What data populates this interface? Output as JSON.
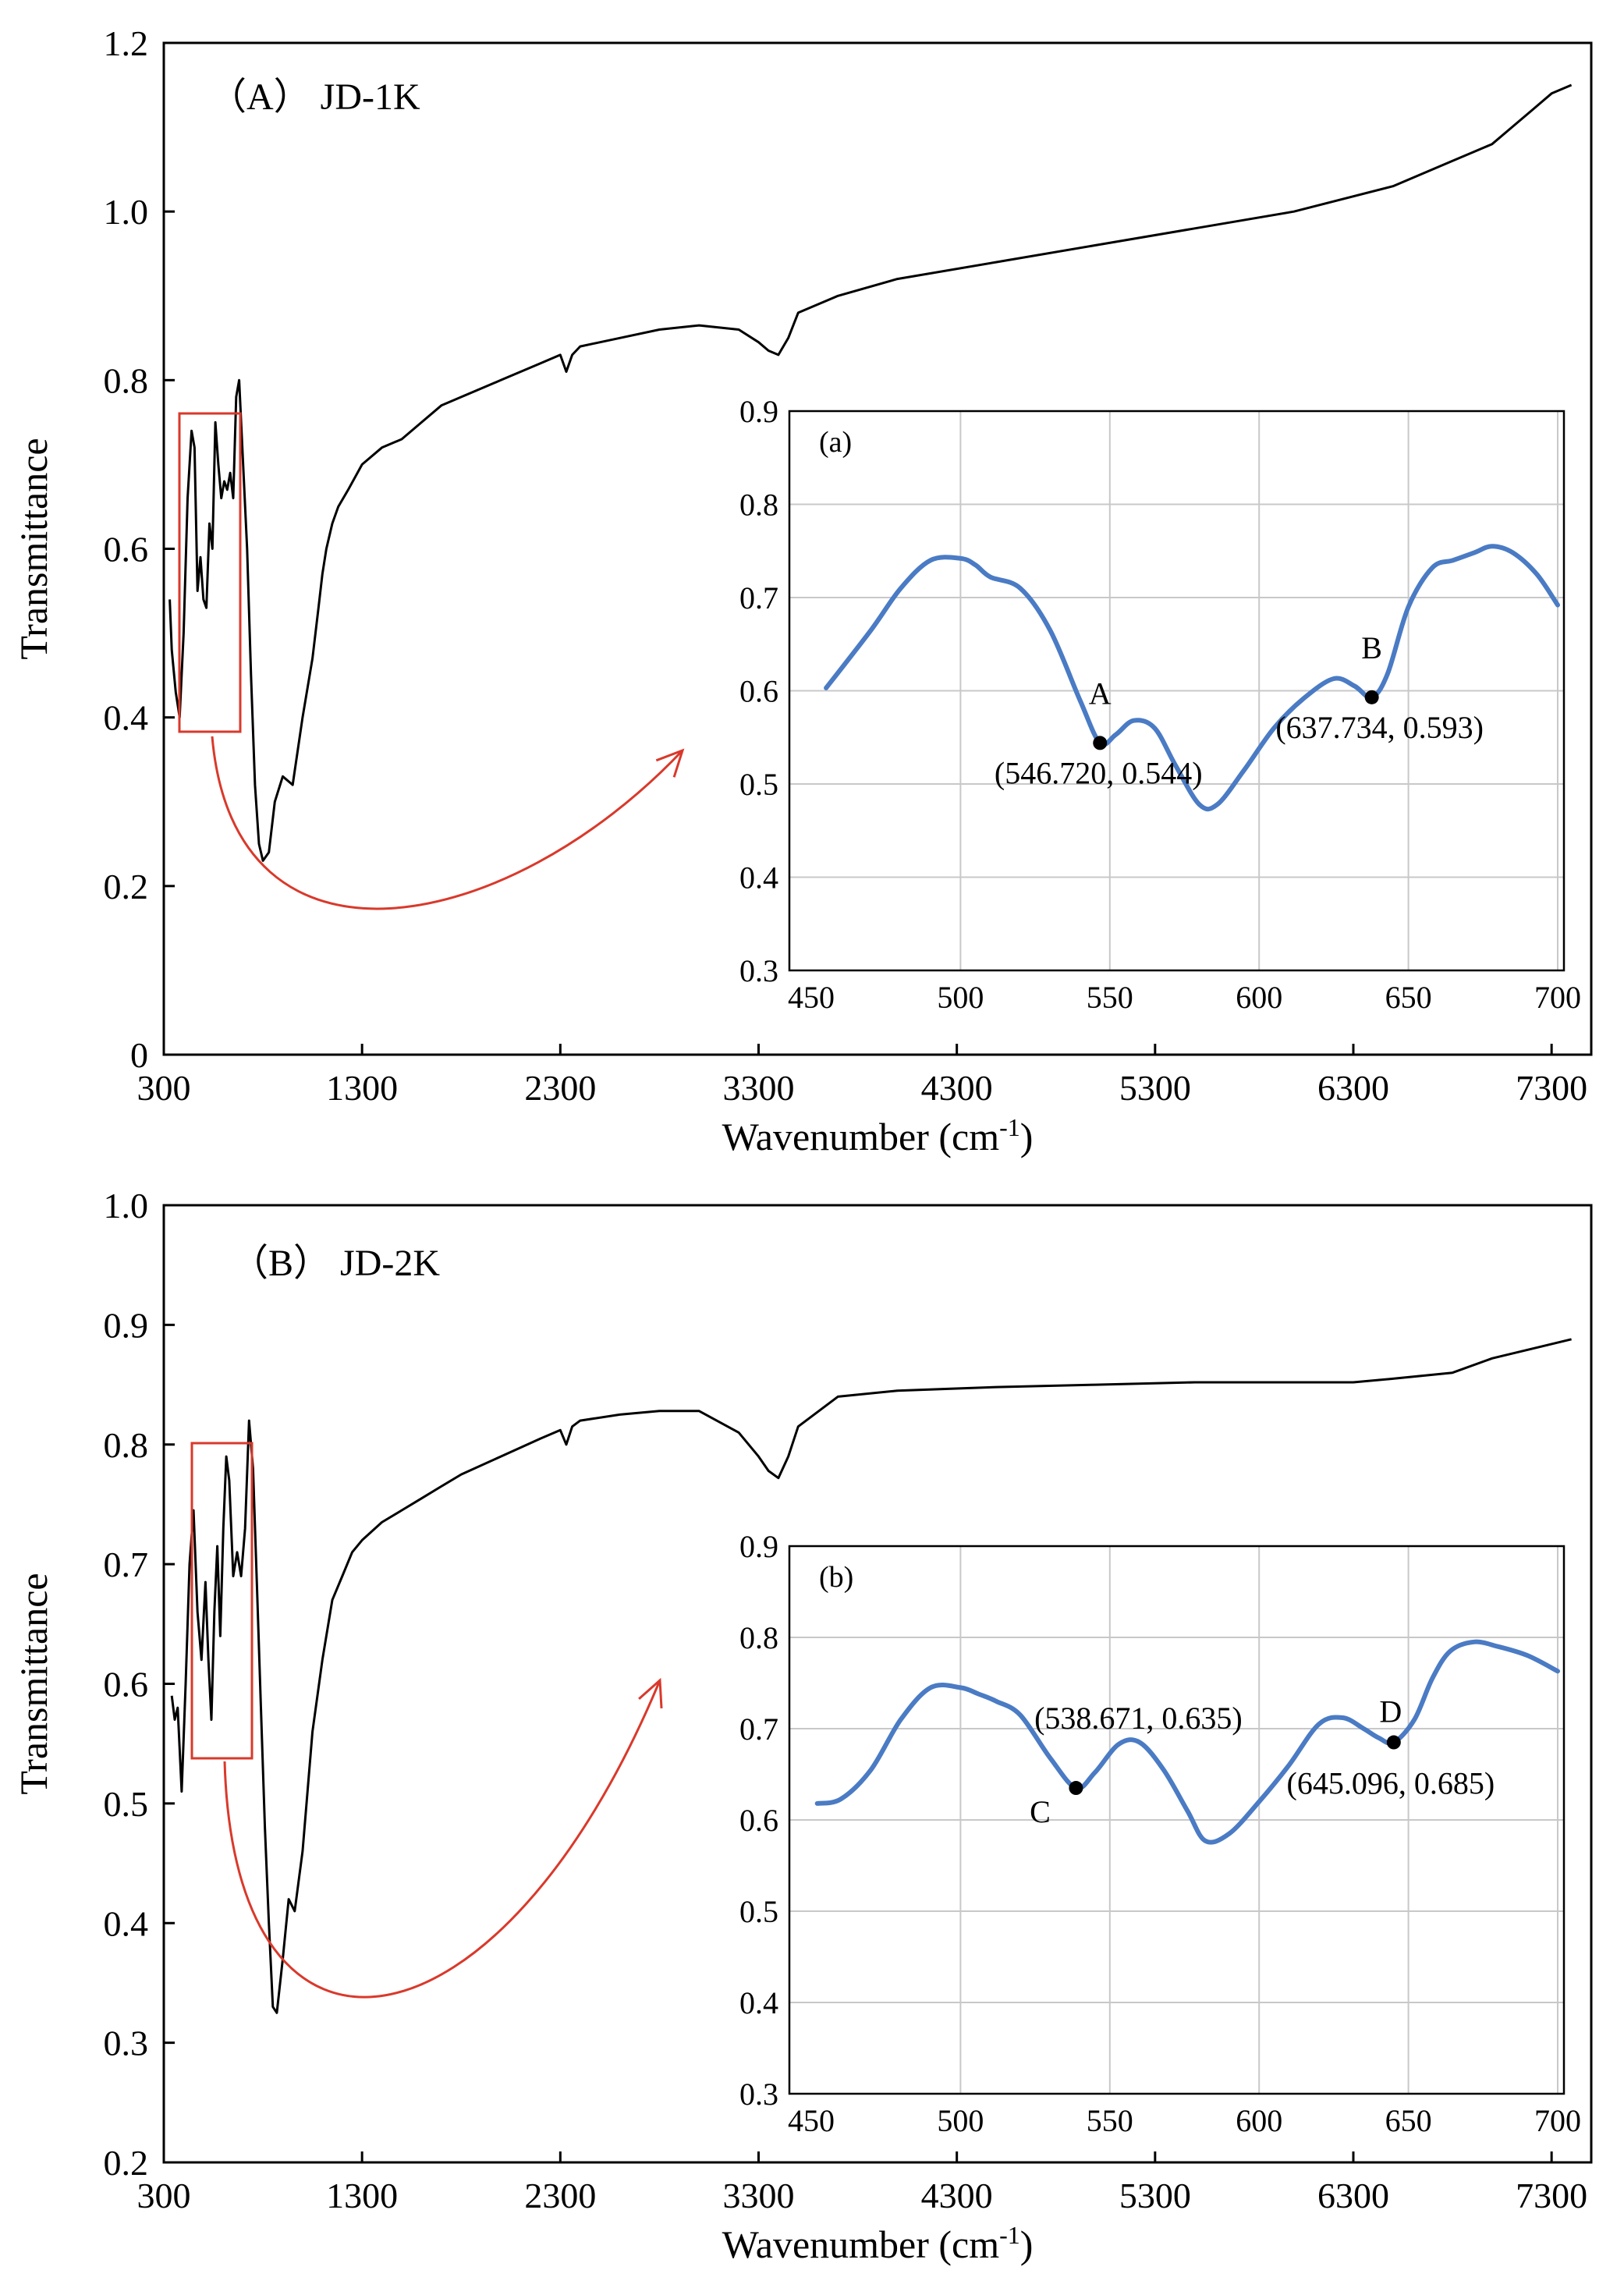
{
  "chart_data": [
    {
      "type": "line",
      "panel": "A",
      "title": "（A） JD-1K",
      "xlabel": "Wavenumber (cm",
      "xlabel_sup": "-1",
      "xlabel_close": ")",
      "ylabel": "Transmittance",
      "xlim": [
        300,
        7500
      ],
      "ylim": [
        0,
        1.2
      ],
      "xticks": [
        300,
        1300,
        2300,
        3300,
        4300,
        5300,
        6300,
        7300
      ],
      "yticks": [
        0,
        0.2,
        0.4,
        0.6,
        0.8,
        1.0,
        1.2
      ],
      "ytick_labels": [
        "0",
        "0.2",
        "0.4",
        "0.6",
        "0.8",
        "1.0",
        "1.2"
      ],
      "grid": false,
      "series": [
        {
          "name": "JD-1K",
          "color": "#000000",
          "x": [
            330,
            340,
            360,
            380,
            400,
            420,
            440,
            455,
            470,
            485,
            500,
            515,
            530,
            545,
            560,
            575,
            590,
            605,
            620,
            635,
            650,
            665,
            680,
            700,
            720,
            740,
            760,
            780,
            800,
            830,
            860,
            900,
            950,
            1000,
            1050,
            1080,
            1100,
            1120,
            1150,
            1180,
            1230,
            1300,
            1400,
            1500,
            1600,
            1700,
            1800,
            2000,
            2200,
            2300,
            2330,
            2360,
            2400,
            2600,
            2800,
            3000,
            3200,
            3300,
            3350,
            3400,
            3450,
            3500,
            3700,
            4000,
            4500,
            5000,
            5500,
            6000,
            6500,
            6800,
            6900,
            7000,
            7100,
            7200,
            7300,
            7400
          ],
          "y": [
            0.54,
            0.48,
            0.43,
            0.4,
            0.5,
            0.66,
            0.74,
            0.72,
            0.55,
            0.59,
            0.54,
            0.53,
            0.63,
            0.6,
            0.75,
            0.7,
            0.66,
            0.68,
            0.67,
            0.69,
            0.66,
            0.78,
            0.8,
            0.7,
            0.6,
            0.45,
            0.32,
            0.25,
            0.23,
            0.24,
            0.3,
            0.33,
            0.32,
            0.4,
            0.47,
            0.53,
            0.57,
            0.6,
            0.63,
            0.65,
            0.67,
            0.7,
            0.72,
            0.73,
            0.75,
            0.77,
            0.78,
            0.8,
            0.82,
            0.83,
            0.81,
            0.83,
            0.84,
            0.85,
            0.86,
            0.865,
            0.86,
            0.845,
            0.835,
            0.83,
            0.85,
            0.88,
            0.9,
            0.92,
            0.94,
            0.96,
            0.98,
            1.0,
            1.03,
            1.06,
            1.07,
            1.08,
            1.1,
            1.12,
            1.14,
            1.15
          ]
        }
      ],
      "inset": {
        "label": "(a)",
        "xlim": [
          450,
          700
        ],
        "ylim": [
          0.3,
          0.9
        ],
        "xticks": [
          450,
          500,
          550,
          600,
          650,
          700
        ],
        "yticks": [
          0.3,
          0.4,
          0.5,
          0.6,
          0.7,
          0.8,
          0.9
        ],
        "ytick_labels": [
          "0.3",
          "0.4",
          "0.5",
          "0.6",
          "0.7",
          "0.8",
          "0.9"
        ],
        "grid": true,
        "color": "#4a7bc4",
        "x": [
          455,
          470,
          480,
          490,
          500,
          505,
          510,
          520,
          530,
          540,
          546.72,
          552,
          558,
          565,
          572,
          580,
          586,
          595,
          605,
          615,
          625,
          632,
          637.734,
          643,
          650,
          658,
          665,
          672,
          678,
          685,
          693,
          700
        ],
        "y": [
          0.603,
          0.665,
          0.71,
          0.74,
          0.742,
          0.735,
          0.722,
          0.71,
          0.665,
          0.59,
          0.544,
          0.553,
          0.568,
          0.56,
          0.52,
          0.478,
          0.478,
          0.515,
          0.56,
          0.592,
          0.613,
          0.605,
          0.593,
          0.618,
          0.69,
          0.732,
          0.74,
          0.748,
          0.755,
          0.748,
          0.725,
          0.692
        ],
        "annotations": [
          {
            "mark": "A",
            "x": 546.72,
            "y": 0.544,
            "coord_text": "(546.720, 0.544)"
          },
          {
            "mark": "B",
            "x": 637.734,
            "y": 0.593,
            "coord_text": "(637.734, 0.593)"
          }
        ]
      }
    },
    {
      "type": "line",
      "panel": "B",
      "title": "（B） JD-2K",
      "xlabel": "Wavenumber (cm",
      "xlabel_sup": "-1",
      "xlabel_close": ")",
      "ylabel": "Transmittance",
      "xlim": [
        300,
        7500
      ],
      "ylim": [
        0.2,
        1.0
      ],
      "xticks": [
        300,
        1300,
        2300,
        3300,
        4300,
        5300,
        6300,
        7300
      ],
      "yticks": [
        0.2,
        0.3,
        0.4,
        0.5,
        0.6,
        0.7,
        0.8,
        0.9,
        1.0
      ],
      "ytick_labels": [
        "0.2",
        "0.3",
        "0.4",
        "0.5",
        "0.6",
        "0.7",
        "0.8",
        "0.9",
        "1.0"
      ],
      "grid": false,
      "series": [
        {
          "name": "JD-2K",
          "color": "#000000",
          "x": [
            340,
            355,
            370,
            390,
            410,
            430,
            450,
            470,
            490,
            510,
            525,
            540,
            555,
            570,
            585,
            600,
            615,
            630,
            650,
            670,
            690,
            710,
            730,
            750,
            770,
            790,
            810,
            830,
            850,
            870,
            900,
            930,
            960,
            1000,
            1050,
            1100,
            1150,
            1200,
            1250,
            1300,
            1400,
            1500,
            1600,
            1700,
            1800,
            2000,
            2200,
            2300,
            2330,
            2360,
            2400,
            2600,
            2800,
            3000,
            3200,
            3300,
            3350,
            3400,
            3450,
            3500,
            3700,
            4000,
            4500,
            5000,
            5500,
            6000,
            6300,
            6500,
            6800,
            7000,
            7200,
            7400
          ],
          "y": [
            0.59,
            0.57,
            0.58,
            0.51,
            0.6,
            0.7,
            0.745,
            0.66,
            0.62,
            0.685,
            0.62,
            0.57,
            0.66,
            0.715,
            0.64,
            0.73,
            0.79,
            0.77,
            0.69,
            0.71,
            0.69,
            0.73,
            0.82,
            0.78,
            0.68,
            0.58,
            0.48,
            0.4,
            0.33,
            0.325,
            0.37,
            0.42,
            0.41,
            0.46,
            0.56,
            0.62,
            0.67,
            0.69,
            0.71,
            0.72,
            0.735,
            0.745,
            0.755,
            0.765,
            0.775,
            0.79,
            0.805,
            0.812,
            0.8,
            0.815,
            0.82,
            0.825,
            0.828,
            0.828,
            0.81,
            0.79,
            0.778,
            0.772,
            0.79,
            0.815,
            0.84,
            0.845,
            0.848,
            0.85,
            0.852,
            0.852,
            0.852,
            0.855,
            0.86,
            0.872,
            0.88,
            0.888
          ]
        }
      ],
      "inset": {
        "label": "(b)",
        "xlim": [
          450,
          700
        ],
        "ylim": [
          0.3,
          0.9
        ],
        "xticks": [
          450,
          500,
          550,
          600,
          650,
          700
        ],
        "yticks": [
          0.3,
          0.4,
          0.5,
          0.6,
          0.7,
          0.8,
          0.9
        ],
        "ytick_labels": [
          "0.3",
          "0.4",
          "0.5",
          "0.6",
          "0.7",
          "0.8",
          "0.9"
        ],
        "grid": true,
        "color": "#4a7bc4",
        "x": [
          452,
          460,
          470,
          480,
          490,
          500,
          506,
          512,
          520,
          530,
          538.671,
          545,
          553,
          560,
          568,
          576,
          582,
          590,
          600,
          610,
          620,
          628,
          635,
          640,
          645.096,
          652,
          658,
          664,
          672,
          680,
          690,
          700
        ],
        "y": [
          0.618,
          0.623,
          0.655,
          0.71,
          0.745,
          0.745,
          0.738,
          0.73,
          0.715,
          0.668,
          0.635,
          0.652,
          0.683,
          0.685,
          0.655,
          0.61,
          0.577,
          0.585,
          0.62,
          0.66,
          0.705,
          0.712,
          0.7,
          0.69,
          0.685,
          0.71,
          0.755,
          0.785,
          0.795,
          0.79,
          0.78,
          0.763
        ],
        "annotations": [
          {
            "mark": "C",
            "x": 538.671,
            "y": 0.635,
            "coord_text": "(538.671, 0.635)"
          },
          {
            "mark": "D",
            "x": 645.096,
            "y": 0.685,
            "coord_text": "(645.096, 0.685)"
          }
        ]
      }
    }
  ]
}
